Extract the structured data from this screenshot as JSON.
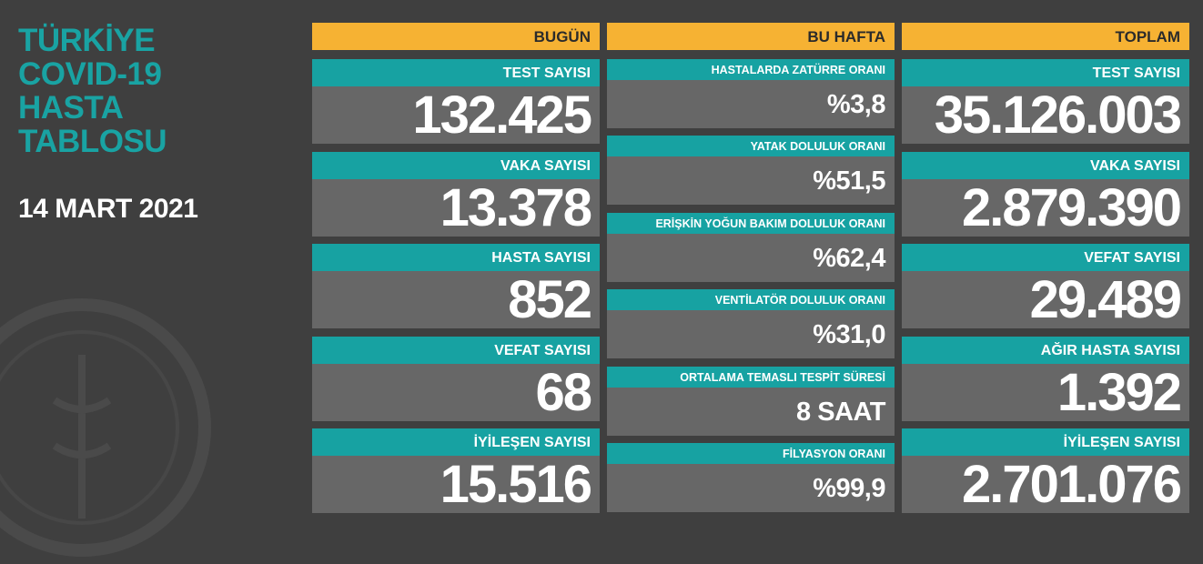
{
  "header": {
    "title_lines": [
      "TÜRKİYE",
      "COVID-19",
      "HASTA",
      "TABLOSU"
    ],
    "date": "14 MART 2021"
  },
  "columns": [
    {
      "header": "BUGÜN",
      "items": [
        {
          "label": "TEST SAYISI",
          "value": "132.425"
        },
        {
          "label": "VAKA SAYISI",
          "value": "13.378"
        },
        {
          "label": "HASTA SAYISI",
          "value": "852"
        },
        {
          "label": "VEFAT SAYISI",
          "value": "68"
        },
        {
          "label": "İYİLEŞEN SAYISI",
          "value": "15.516"
        }
      ]
    },
    {
      "header": "BU HAFTA",
      "items": [
        {
          "label": "HASTALARDA ZATÜRRE ORANI",
          "value": "%3,8"
        },
        {
          "label": "YATAK DOLULUK ORANI",
          "value": "%51,5"
        },
        {
          "label": "ERİŞKİN YOĞUN BAKIM DOLULUK ORANI",
          "value": "%62,4"
        },
        {
          "label": "VENTİLATÖR DOLULUK ORANI",
          "value": "%31,0"
        },
        {
          "label": "ORTALAMA TEMASLI TESPİT SÜRESİ",
          "value": "8 SAAT"
        },
        {
          "label": "FİLYASYON ORANI",
          "value": "%99,9"
        }
      ]
    },
    {
      "header": "TOPLAM",
      "items": [
        {
          "label": "TEST SAYISI",
          "value": "35.126.003"
        },
        {
          "label": "VAKA SAYISI",
          "value": "2.879.390"
        },
        {
          "label": "VEFAT SAYISI",
          "value": "29.489"
        },
        {
          "label": "AĞIR HASTA SAYISI",
          "value": "1.392"
        },
        {
          "label": "İYİLEŞEN SAYISI",
          "value": "2.701.076"
        }
      ]
    }
  ]
}
